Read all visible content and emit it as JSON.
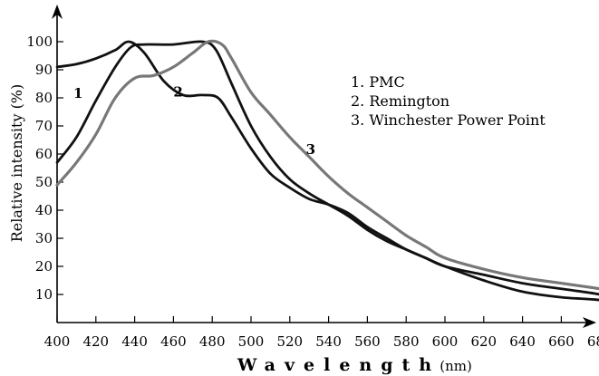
{
  "chart_data": {
    "type": "line",
    "title": "",
    "xlabel": "Wavelength",
    "xunit": "(nm)",
    "ylabel": "Relative intensity (%)",
    "xlim": [
      400,
      700
    ],
    "ylim": [
      0,
      100
    ],
    "x_ticks": [
      400,
      420,
      440,
      460,
      480,
      500,
      520,
      540,
      560,
      580,
      600,
      620,
      640,
      660,
      680
    ],
    "y_ticks": [
      10,
      20,
      30,
      40,
      50,
      60,
      70,
      80,
      90,
      100
    ],
    "grid": false,
    "legend": {
      "placement": "top-right",
      "entries": [
        "1. PMC",
        "2. Remington",
        "3. Winchester Power Point"
      ]
    },
    "series": [
      {
        "label": "1",
        "color": "#111111",
        "points": [
          [
            400,
            57
          ],
          [
            410,
            66
          ],
          [
            420,
            79
          ],
          [
            430,
            91
          ],
          [
            438,
            98
          ],
          [
            445,
            99
          ],
          [
            460,
            99
          ],
          [
            475,
            100
          ],
          [
            482,
            97
          ],
          [
            490,
            85
          ],
          [
            500,
            70
          ],
          [
            510,
            59
          ],
          [
            520,
            51
          ],
          [
            530,
            46
          ],
          [
            540,
            42
          ],
          [
            550,
            38
          ],
          [
            560,
            33
          ],
          [
            570,
            29
          ],
          [
            580,
            26
          ],
          [
            590,
            23
          ],
          [
            600,
            20
          ],
          [
            620,
            17
          ],
          [
            640,
            14
          ],
          [
            660,
            12
          ],
          [
            680,
            10
          ],
          [
            697,
            7
          ]
        ]
      },
      {
        "label": "2",
        "color": "#111111",
        "points": [
          [
            400,
            91
          ],
          [
            410,
            92
          ],
          [
            420,
            94
          ],
          [
            430,
            97
          ],
          [
            437,
            100
          ],
          [
            445,
            96
          ],
          [
            455,
            86
          ],
          [
            465,
            81
          ],
          [
            475,
            81
          ],
          [
            483,
            80
          ],
          [
            490,
            73
          ],
          [
            500,
            62
          ],
          [
            510,
            53
          ],
          [
            520,
            48
          ],
          [
            530,
            44
          ],
          [
            540,
            42
          ],
          [
            550,
            39
          ],
          [
            560,
            34
          ],
          [
            570,
            30
          ],
          [
            580,
            26
          ],
          [
            590,
            23
          ],
          [
            600,
            20
          ],
          [
            620,
            15
          ],
          [
            640,
            11
          ],
          [
            660,
            9
          ],
          [
            680,
            8
          ],
          [
            697,
            6
          ]
        ]
      },
      {
        "label": "3",
        "color": "#777777",
        "points": [
          [
            400,
            49
          ],
          [
            410,
            57
          ],
          [
            420,
            67
          ],
          [
            430,
            80
          ],
          [
            440,
            87
          ],
          [
            450,
            88
          ],
          [
            460,
            91
          ],
          [
            470,
            96
          ],
          [
            478,
            100
          ],
          [
            485,
            99
          ],
          [
            490,
            94
          ],
          [
            500,
            82
          ],
          [
            510,
            74
          ],
          [
            520,
            66
          ],
          [
            530,
            59
          ],
          [
            540,
            52
          ],
          [
            550,
            46
          ],
          [
            560,
            41
          ],
          [
            570,
            36
          ],
          [
            580,
            31
          ],
          [
            590,
            27
          ],
          [
            600,
            23
          ],
          [
            620,
            19
          ],
          [
            640,
            16
          ],
          [
            660,
            14
          ],
          [
            680,
            12
          ],
          [
            697,
            10
          ]
        ]
      }
    ]
  }
}
